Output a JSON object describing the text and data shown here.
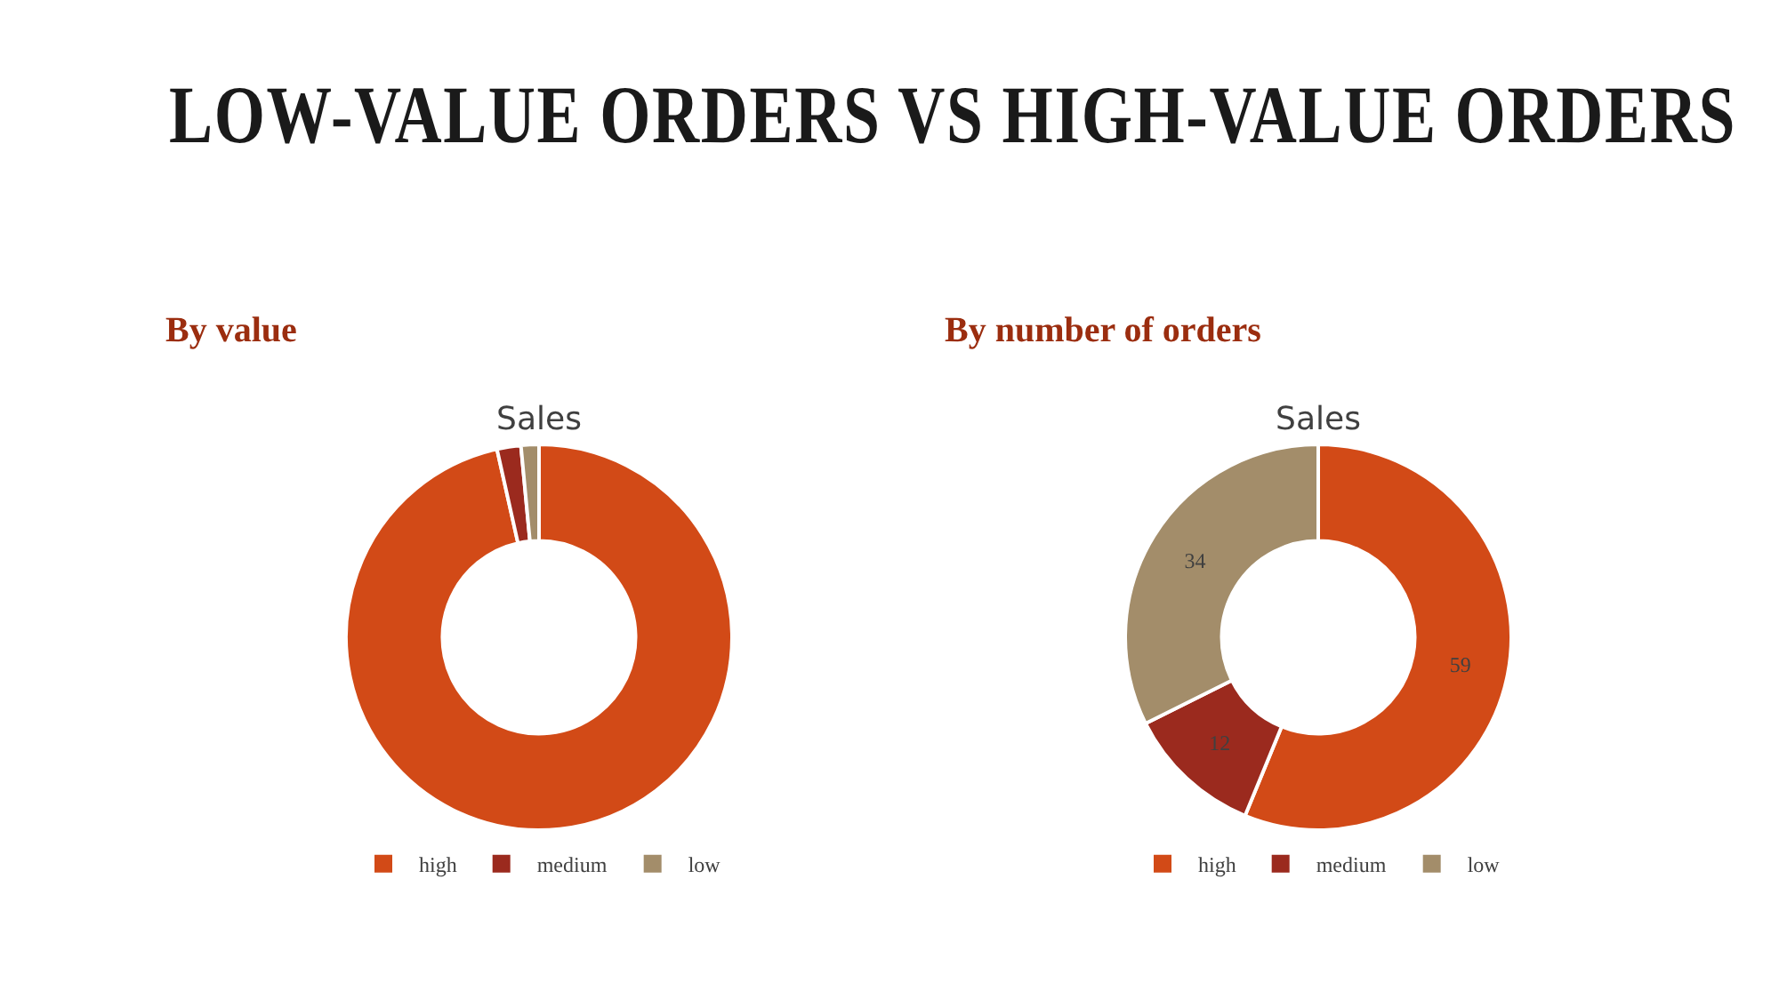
{
  "chart_data": [
    {
      "type": "donut",
      "title": "Sales",
      "subtitle": "By value",
      "annotations": [
        "LOW-VALUE ORDERS VS HIGH-VALUE ORDERS"
      ],
      "categories": [
        "high",
        "medium",
        "low"
      ],
      "values": [
        96.5,
        2,
        1.5
      ],
      "colors": [
        "#d24a17",
        "#9b2a1e",
        "#a38d6a"
      ],
      "legend": "bottom"
    },
    {
      "type": "donut",
      "title": "Sales",
      "subtitle": "By number of orders",
      "categories": [
        "high",
        "medium",
        "low"
      ],
      "values": [
        59,
        12,
        34
      ],
      "colors": [
        "#d24a17",
        "#9b2a1e",
        "#a38d6a"
      ],
      "data_labels": true,
      "legend": "bottom"
    }
  ]
}
